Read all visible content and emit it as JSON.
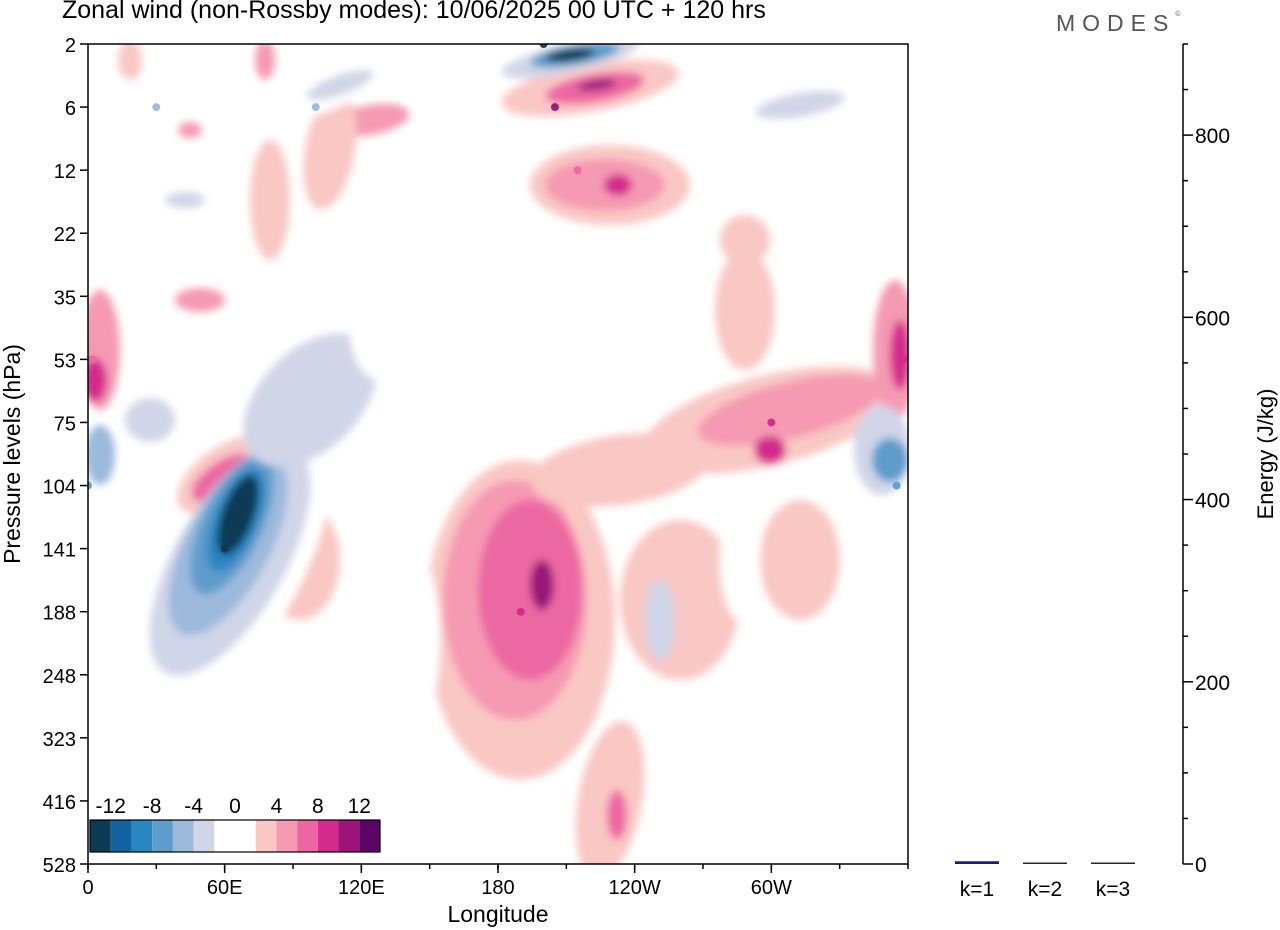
{
  "title": "Zonal wind (non-Rossby modes):  10/06/2025  00 UTC  + 120 hrs",
  "brand": "MODES",
  "brand_mark": "©",
  "chart_data": [
    {
      "type": "heatmap",
      "title": "Zonal wind (non-Rossby modes):  10/06/2025  00 UTC  + 120 hrs",
      "xlabel": "Longitude",
      "ylabel": "Pressure levels (hPa)",
      "x_ticks": [
        "0",
        "60E",
        "120E",
        "180",
        "120W",
        "60W"
      ],
      "x_tick_values": [
        0,
        60,
        120,
        180,
        240,
        300
      ],
      "xlim": [
        0,
        360
      ],
      "y_ticks": [
        "2",
        "6",
        "12",
        "22",
        "35",
        "53",
        "75",
        "104",
        "141",
        "188",
        "248",
        "323",
        "416",
        "528"
      ],
      "y_axis": "pressure, top to bottom, one tick per level",
      "colorbar": {
        "labels": [
          "-12",
          "-8",
          "-4",
          "0",
          "4",
          "8",
          "12"
        ],
        "levels": [
          -14,
          -12,
          -10,
          -8,
          -6,
          -4,
          -2,
          0,
          2,
          4,
          6,
          8,
          10,
          12,
          14
        ],
        "colors": [
          "#0d3a55",
          "#1264a0",
          "#2a86c0",
          "#5e9ccc",
          "#9cb9dc",
          "#d0d5e8",
          "#ffffff",
          "#ffffff",
          "#f9c7c4",
          "#f59ab2",
          "#ec67a2",
          "#d42a8c",
          "#9b1478",
          "#5a0565"
        ]
      },
      "features": [
        {
          "lon": 200,
          "level": "2",
          "value": -14
        },
        {
          "lon": 205,
          "level": "6",
          "value": 10
        },
        {
          "lon": 215,
          "level": "12",
          "value": 7
        },
        {
          "lon": 60,
          "level": "141",
          "value": -14
        },
        {
          "lon": 190,
          "level": "188",
          "value": 9
        },
        {
          "lon": 300,
          "level": "75",
          "value": 9
        },
        {
          "lon": 358,
          "level": "53",
          "value": 8
        },
        {
          "lon": 355,
          "level": "104",
          "value": -8
        },
        {
          "lon": 2,
          "level": "53",
          "value": 7
        },
        {
          "lon": 0,
          "level": "104",
          "value": -7
        },
        {
          "lon": 30,
          "level": "6",
          "value": -6
        },
        {
          "lon": 100,
          "level": "6",
          "value": -6
        }
      ]
    },
    {
      "type": "bar",
      "ylabel": "Energy (J/kg)",
      "ylim": [
        0,
        900
      ],
      "y_ticks": [
        0,
        200,
        400,
        600,
        800
      ],
      "categories": [
        "k=1",
        "k=2",
        "k=3"
      ],
      "values": [
        3,
        1,
        1
      ]
    }
  ]
}
